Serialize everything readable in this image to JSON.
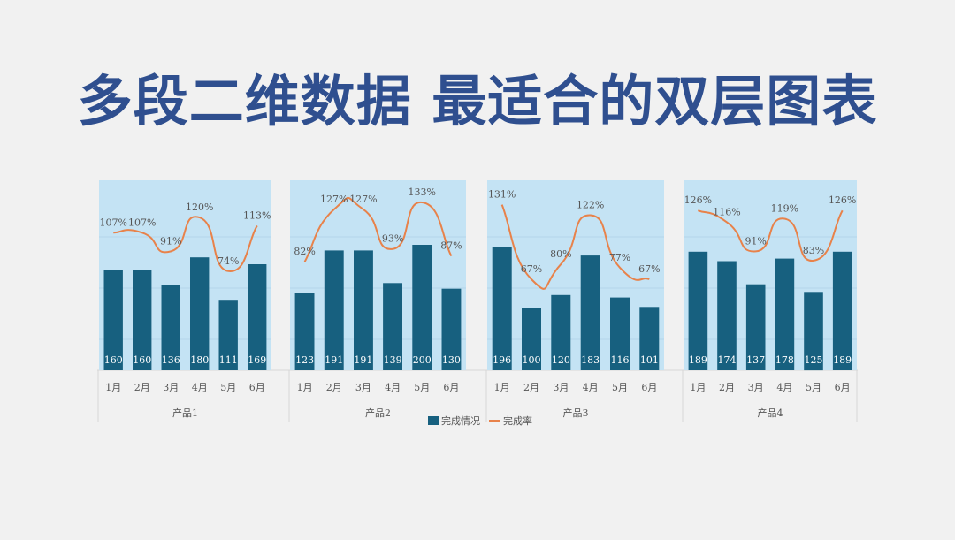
{
  "title": "多段二维数据 最适合的双层图表",
  "chart_data": {
    "type": "bar+line",
    "title": "",
    "groups": [
      {
        "name": "产品1",
        "categories": [
          "1月",
          "2月",
          "3月",
          "4月",
          "5月",
          "6月"
        ],
        "values": [
          160,
          160,
          136,
          180,
          111,
          169
        ],
        "rate_labels": [
          "107%",
          "107%",
          "91%",
          "120%",
          "74%",
          "113%"
        ],
        "rate": [
          107,
          107,
          91,
          120,
          74,
          113
        ]
      },
      {
        "name": "产品2",
        "categories": [
          "1月",
          "2月",
          "3月",
          "4月",
          "5月",
          "6月"
        ],
        "values": [
          123,
          191,
          191,
          139,
          200,
          130
        ],
        "rate_labels": [
          "82%",
          "127%",
          "127%",
          "93%",
          "133%",
          "87%"
        ],
        "rate": [
          82,
          127,
          127,
          93,
          133,
          87
        ]
      },
      {
        "name": "产品3",
        "categories": [
          "1月",
          "2月",
          "3月",
          "4月",
          "5月",
          "6月"
        ],
        "values": [
          196,
          100,
          120,
          183,
          116,
          101
        ],
        "rate_labels": [
          "131%",
          "67%",
          "80%",
          "122%",
          "77%",
          "67%"
        ],
        "rate": [
          131,
          67,
          80,
          122,
          77,
          67
        ]
      },
      {
        "name": "产品4",
        "categories": [
          "1月",
          "2月",
          "3月",
          "4月",
          "5月",
          "6月"
        ],
        "values": [
          189,
          174,
          137,
          178,
          125,
          189
        ],
        "rate_labels": [
          "126%",
          "116%",
          "91%",
          "119%",
          "83%",
          "126%"
        ],
        "rate": [
          126,
          116,
          91,
          119,
          83,
          126
        ]
      }
    ],
    "series": [
      {
        "name": "完成情况",
        "kind": "bar",
        "color": "#17607f"
      },
      {
        "name": "完成率",
        "kind": "line",
        "color": "#e8824a"
      }
    ],
    "bar_ylim": [
      0,
      300
    ],
    "rate_ylim": [
      -90,
      140
    ],
    "legend_position": "bottom"
  },
  "colors": {
    "title": "#2f4f8f",
    "panel": "#c4e3f4",
    "bar": "#17607f",
    "line": "#e8824a",
    "text": "#555555",
    "value_text": "#ffffff"
  }
}
